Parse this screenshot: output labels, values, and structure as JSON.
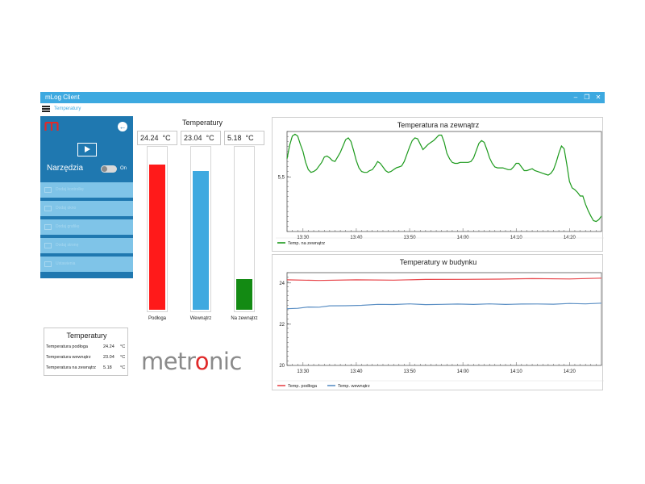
{
  "window": {
    "title": "mLog Client",
    "controls": [
      "–",
      "❐",
      "✕"
    ]
  },
  "menu": {
    "breadcrumb": "Temperatury"
  },
  "sidebar": {
    "logo_letter": "m",
    "back_icon": "←",
    "tools_label": "Narzędzia",
    "toggle_label": "On",
    "toggle_on": true,
    "items": [
      {
        "label": "Dodaj kontrolkę",
        "icon": "chart-icon"
      },
      {
        "label": "Dodaj okno",
        "icon": "window-icon"
      },
      {
        "label": "Dodaj grafikę",
        "icon": "image-icon"
      },
      {
        "label": "Dodaj stronę",
        "icon": "page-icon"
      },
      {
        "label": "Ustawienia",
        "icon": "settings-icon"
      }
    ]
  },
  "gauges": {
    "title": "Temperatury",
    "items": [
      {
        "value": "24.24",
        "unit": "°C",
        "label": "Podłoga",
        "color": "#ff1a1a",
        "level": 0.9
      },
      {
        "value": "23.04",
        "unit": "°C",
        "label": "Wewnątrz",
        "color": "#3fa9e0",
        "level": 0.86
      },
      {
        "value": "5.18",
        "unit": "°C",
        "label": "Na zewnątrz",
        "color": "#138a13",
        "level": 0.19
      }
    ]
  },
  "summary": {
    "title": "Temperatury",
    "rows": [
      {
        "name": "Temperatura podłoga",
        "value": "24.24",
        "unit": "°C"
      },
      {
        "name": "Temperatura wewnątrz",
        "value": "23.04",
        "unit": "°C"
      },
      {
        "name": "Temperatura na zewnątrz",
        "value": "5.18",
        "unit": "°C"
      }
    ]
  },
  "brand": {
    "name": "metronic",
    "accent": "#e02a2a",
    "text_color": "#8a8a8a"
  },
  "chart_data": [
    {
      "type": "line",
      "title": "Temperatura na zewnątrz",
      "x_ticks": [
        "13:30",
        "13:40",
        "13:50",
        "14:00",
        "14:10",
        "14:20"
      ],
      "x_tick_minutes": [
        30,
        40,
        50,
        60,
        70,
        80
      ],
      "xlim_minutes": [
        27,
        86
      ],
      "y_ticks": [
        5.5
      ],
      "ylim": [
        4.9,
        6.0
      ],
      "legend_position": "bottom-left",
      "series": [
        {
          "name": "Temp. na zewnątrz",
          "color": "#1c9a1c",
          "x": [
            27,
            27.5,
            28,
            28.5,
            29,
            29.5,
            30,
            30.5,
            31,
            31.5,
            32,
            32.5,
            33,
            33.5,
            34,
            34.5,
            35,
            35.5,
            36,
            36.5,
            37,
            37.5,
            38,
            38.5,
            39,
            39.5,
            40,
            40.5,
            41,
            41.5,
            42,
            42.5,
            43,
            43.5,
            44,
            44.5,
            45,
            45.5,
            46,
            46.5,
            47,
            47.5,
            48,
            48.5,
            49,
            49.5,
            50,
            50.5,
            51,
            51.5,
            52,
            52.5,
            53,
            53.5,
            54,
            54.5,
            55,
            55.5,
            56,
            56.5,
            57,
            57.5,
            58,
            58.5,
            59,
            59.5,
            60,
            60.5,
            61,
            61.5,
            62,
            62.5,
            63,
            63.5,
            64,
            64.5,
            65,
            65.5,
            66,
            66.5,
            67,
            67.5,
            68,
            68.5,
            69,
            69.5,
            70,
            70.5,
            71,
            71.5,
            72,
            72.5,
            73,
            73.5,
            74,
            74.5,
            75,
            75.5,
            76,
            76.5,
            77,
            77.5,
            78,
            78.5,
            79,
            79.5,
            80,
            80.5,
            81,
            81.5,
            82,
            82.5,
            83,
            83.5,
            84,
            84.5,
            85,
            85.5,
            86
          ],
          "y": [
            5.7,
            5.85,
            5.95,
            5.97,
            5.95,
            5.86,
            5.78,
            5.66,
            5.58,
            5.55,
            5.56,
            5.58,
            5.62,
            5.66,
            5.72,
            5.73,
            5.71,
            5.68,
            5.67,
            5.72,
            5.77,
            5.84,
            5.91,
            5.93,
            5.89,
            5.79,
            5.68,
            5.6,
            5.56,
            5.55,
            5.55,
            5.57,
            5.58,
            5.62,
            5.67,
            5.65,
            5.61,
            5.57,
            5.55,
            5.56,
            5.58,
            5.6,
            5.61,
            5.62,
            5.67,
            5.75,
            5.83,
            5.9,
            5.93,
            5.92,
            5.86,
            5.8,
            5.83,
            5.86,
            5.88,
            5.9,
            5.93,
            5.96,
            5.96,
            5.88,
            5.76,
            5.7,
            5.66,
            5.65,
            5.65,
            5.66,
            5.66,
            5.66,
            5.66,
            5.67,
            5.71,
            5.79,
            5.87,
            5.9,
            5.88,
            5.8,
            5.71,
            5.65,
            5.61,
            5.6,
            5.6,
            5.6,
            5.59,
            5.58,
            5.58,
            5.61,
            5.65,
            5.65,
            5.61,
            5.57,
            5.57,
            5.58,
            5.59,
            5.57,
            5.56,
            5.55,
            5.54,
            5.53,
            5.52,
            5.54,
            5.58,
            5.66,
            5.76,
            5.84,
            5.81,
            5.64,
            5.45,
            5.38,
            5.36,
            5.33,
            5.29,
            5.29,
            5.2,
            5.13,
            5.07,
            5.02,
            5.01,
            5.03,
            5.07
          ]
        }
      ]
    },
    {
      "type": "line",
      "title": "Temperatury w budynku",
      "x_ticks": [
        "13:30",
        "13:40",
        "13:50",
        "14:00",
        "14:10",
        "14:20"
      ],
      "x_tick_minutes": [
        30,
        40,
        50,
        60,
        70,
        80
      ],
      "xlim_minutes": [
        27,
        86
      ],
      "y_ticks": [
        20,
        22,
        24
      ],
      "ylim": [
        20,
        24.5
      ],
      "legend_position": "bottom-left",
      "series": [
        {
          "name": "Temp. podłoga",
          "color": "#e8474c",
          "x": [
            27,
            33,
            40,
            47,
            53,
            60,
            67,
            73,
            80,
            86
          ],
          "y": [
            24.15,
            24.13,
            24.14,
            24.15,
            24.16,
            24.18,
            24.19,
            24.2,
            24.21,
            24.22
          ]
        },
        {
          "name": "Temp. wewnątrz",
          "color": "#5b8fc4",
          "x": [
            27,
            29,
            31,
            33,
            35,
            38,
            41,
            44,
            47,
            50,
            53,
            56,
            59,
            62,
            65,
            68,
            71,
            74,
            77,
            80,
            83,
            86
          ],
          "y": [
            22.75,
            22.78,
            22.82,
            22.84,
            22.88,
            22.9,
            22.92,
            22.95,
            22.97,
            22.97,
            22.96,
            22.96,
            22.97,
            22.97,
            22.97,
            22.97,
            22.97,
            22.98,
            22.98,
            22.99,
            23.0,
            23.01
          ]
        }
      ]
    }
  ]
}
